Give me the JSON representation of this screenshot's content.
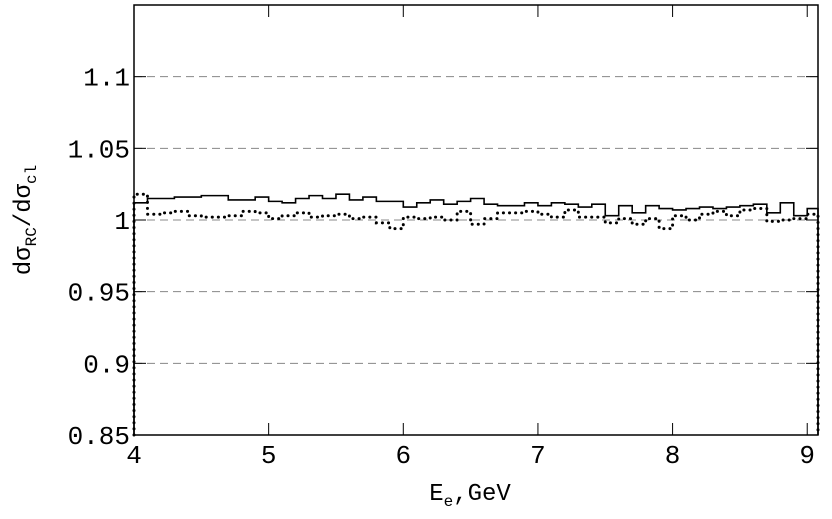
{
  "chart_data": {
    "type": "histogram",
    "xlabel": [
      "E",
      "e",
      ",GeV"
    ],
    "ylabel": [
      "dσ",
      "RC",
      "/dσ",
      "cl"
    ],
    "bins": [
      4,
      4.1,
      4.2,
      4.3,
      4.4,
      4.5,
      4.6,
      4.7,
      4.8,
      4.9,
      5,
      5.1,
      5.2,
      5.3,
      5.4,
      5.5,
      5.6,
      5.7,
      5.8,
      5.9,
      6,
      6.1,
      6.2,
      6.3,
      6.4,
      6.5,
      6.6,
      6.7,
      6.8,
      6.9,
      7,
      7.1,
      7.2,
      7.3,
      7.4,
      7.5,
      7.6,
      7.7,
      7.8,
      7.9,
      8,
      8.1,
      8.2,
      8.3,
      8.4,
      8.5,
      8.6,
      8.7,
      8.8,
      8.9,
      9,
      9.08
    ],
    "series": [
      {
        "style": "solid",
        "color": "#000000",
        "values": [
          1.012,
          1.015,
          1.015,
          1.016,
          1.016,
          1.017,
          1.017,
          1.014,
          1.014,
          1.016,
          1.013,
          1.012,
          1.015,
          1.017,
          1.015,
          1.018,
          1.014,
          1.016,
          1.013,
          1.013,
          1.009,
          1.012,
          1.014,
          1.011,
          1.013,
          1.015,
          1.011,
          1.01,
          1.01,
          1.012,
          1.01,
          1.012,
          1.011,
          1.009,
          1.011,
          1.003,
          1.01,
          1.005,
          1.01,
          1.008,
          1.007,
          1.008,
          1.009,
          1.008,
          1.009,
          1.01,
          1.011,
          1.005,
          1.012,
          1.003,
          1.008
        ]
      },
      {
        "style": "dotted",
        "color": "#000000",
        "values": [
          1.018,
          1.004,
          1.005,
          1.006,
          1.003,
          1.002,
          1.002,
          1.003,
          1.006,
          1.005,
          1.001,
          1.003,
          1.005,
          1.002,
          1.003,
          1.004,
          1.001,
          1.002,
          0.998,
          0.994,
          1.002,
          1.001,
          1.002,
          1.0,
          1.006,
          0.997,
          1.001,
          1.005,
          1.005,
          1.006,
          1.004,
          1.002,
          1.007,
          1.002,
          1.002,
          0.998,
          1.001,
          0.997,
          1.001,
          0.994,
          1.003,
          1.0,
          1.004,
          1.006,
          1.003,
          1.007,
          1.008,
          0.999,
          1.0,
          1.001,
          1.004
        ]
      }
    ],
    "xlim": [
      4,
      9.08
    ],
    "ylim": [
      0.85,
      1.15
    ],
    "xticks": [
      4,
      5,
      6,
      7,
      8,
      9
    ],
    "yticks": [
      0.85,
      0.9,
      0.95,
      1,
      {
        "value": 1.05,
        "label": "1.05"
      },
      1.1
    ],
    "grid": true
  }
}
